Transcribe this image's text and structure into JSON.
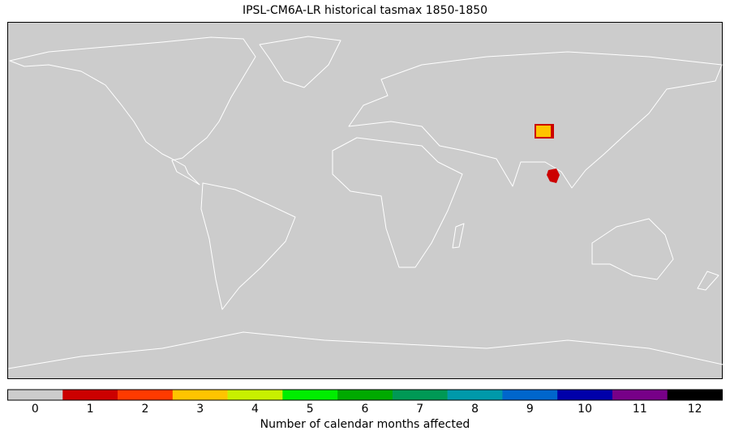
{
  "title": "IPSL-CM6A-LR historical tasmax 1850-1850",
  "colorbar": {
    "label": "Number of calendar months affected",
    "ticks": [
      0,
      1,
      2,
      3,
      4,
      5,
      6,
      7,
      8,
      9,
      10,
      11,
      12
    ],
    "colors": [
      "#cccccc",
      "#cc0000",
      "#ff3a00",
      "#ffc400",
      "#c8f000",
      "#00ee00",
      "#00aa00",
      "#009955",
      "#0099aa",
      "#0066cc",
      "#0000aa",
      "#770088",
      "#000000"
    ]
  }
}
